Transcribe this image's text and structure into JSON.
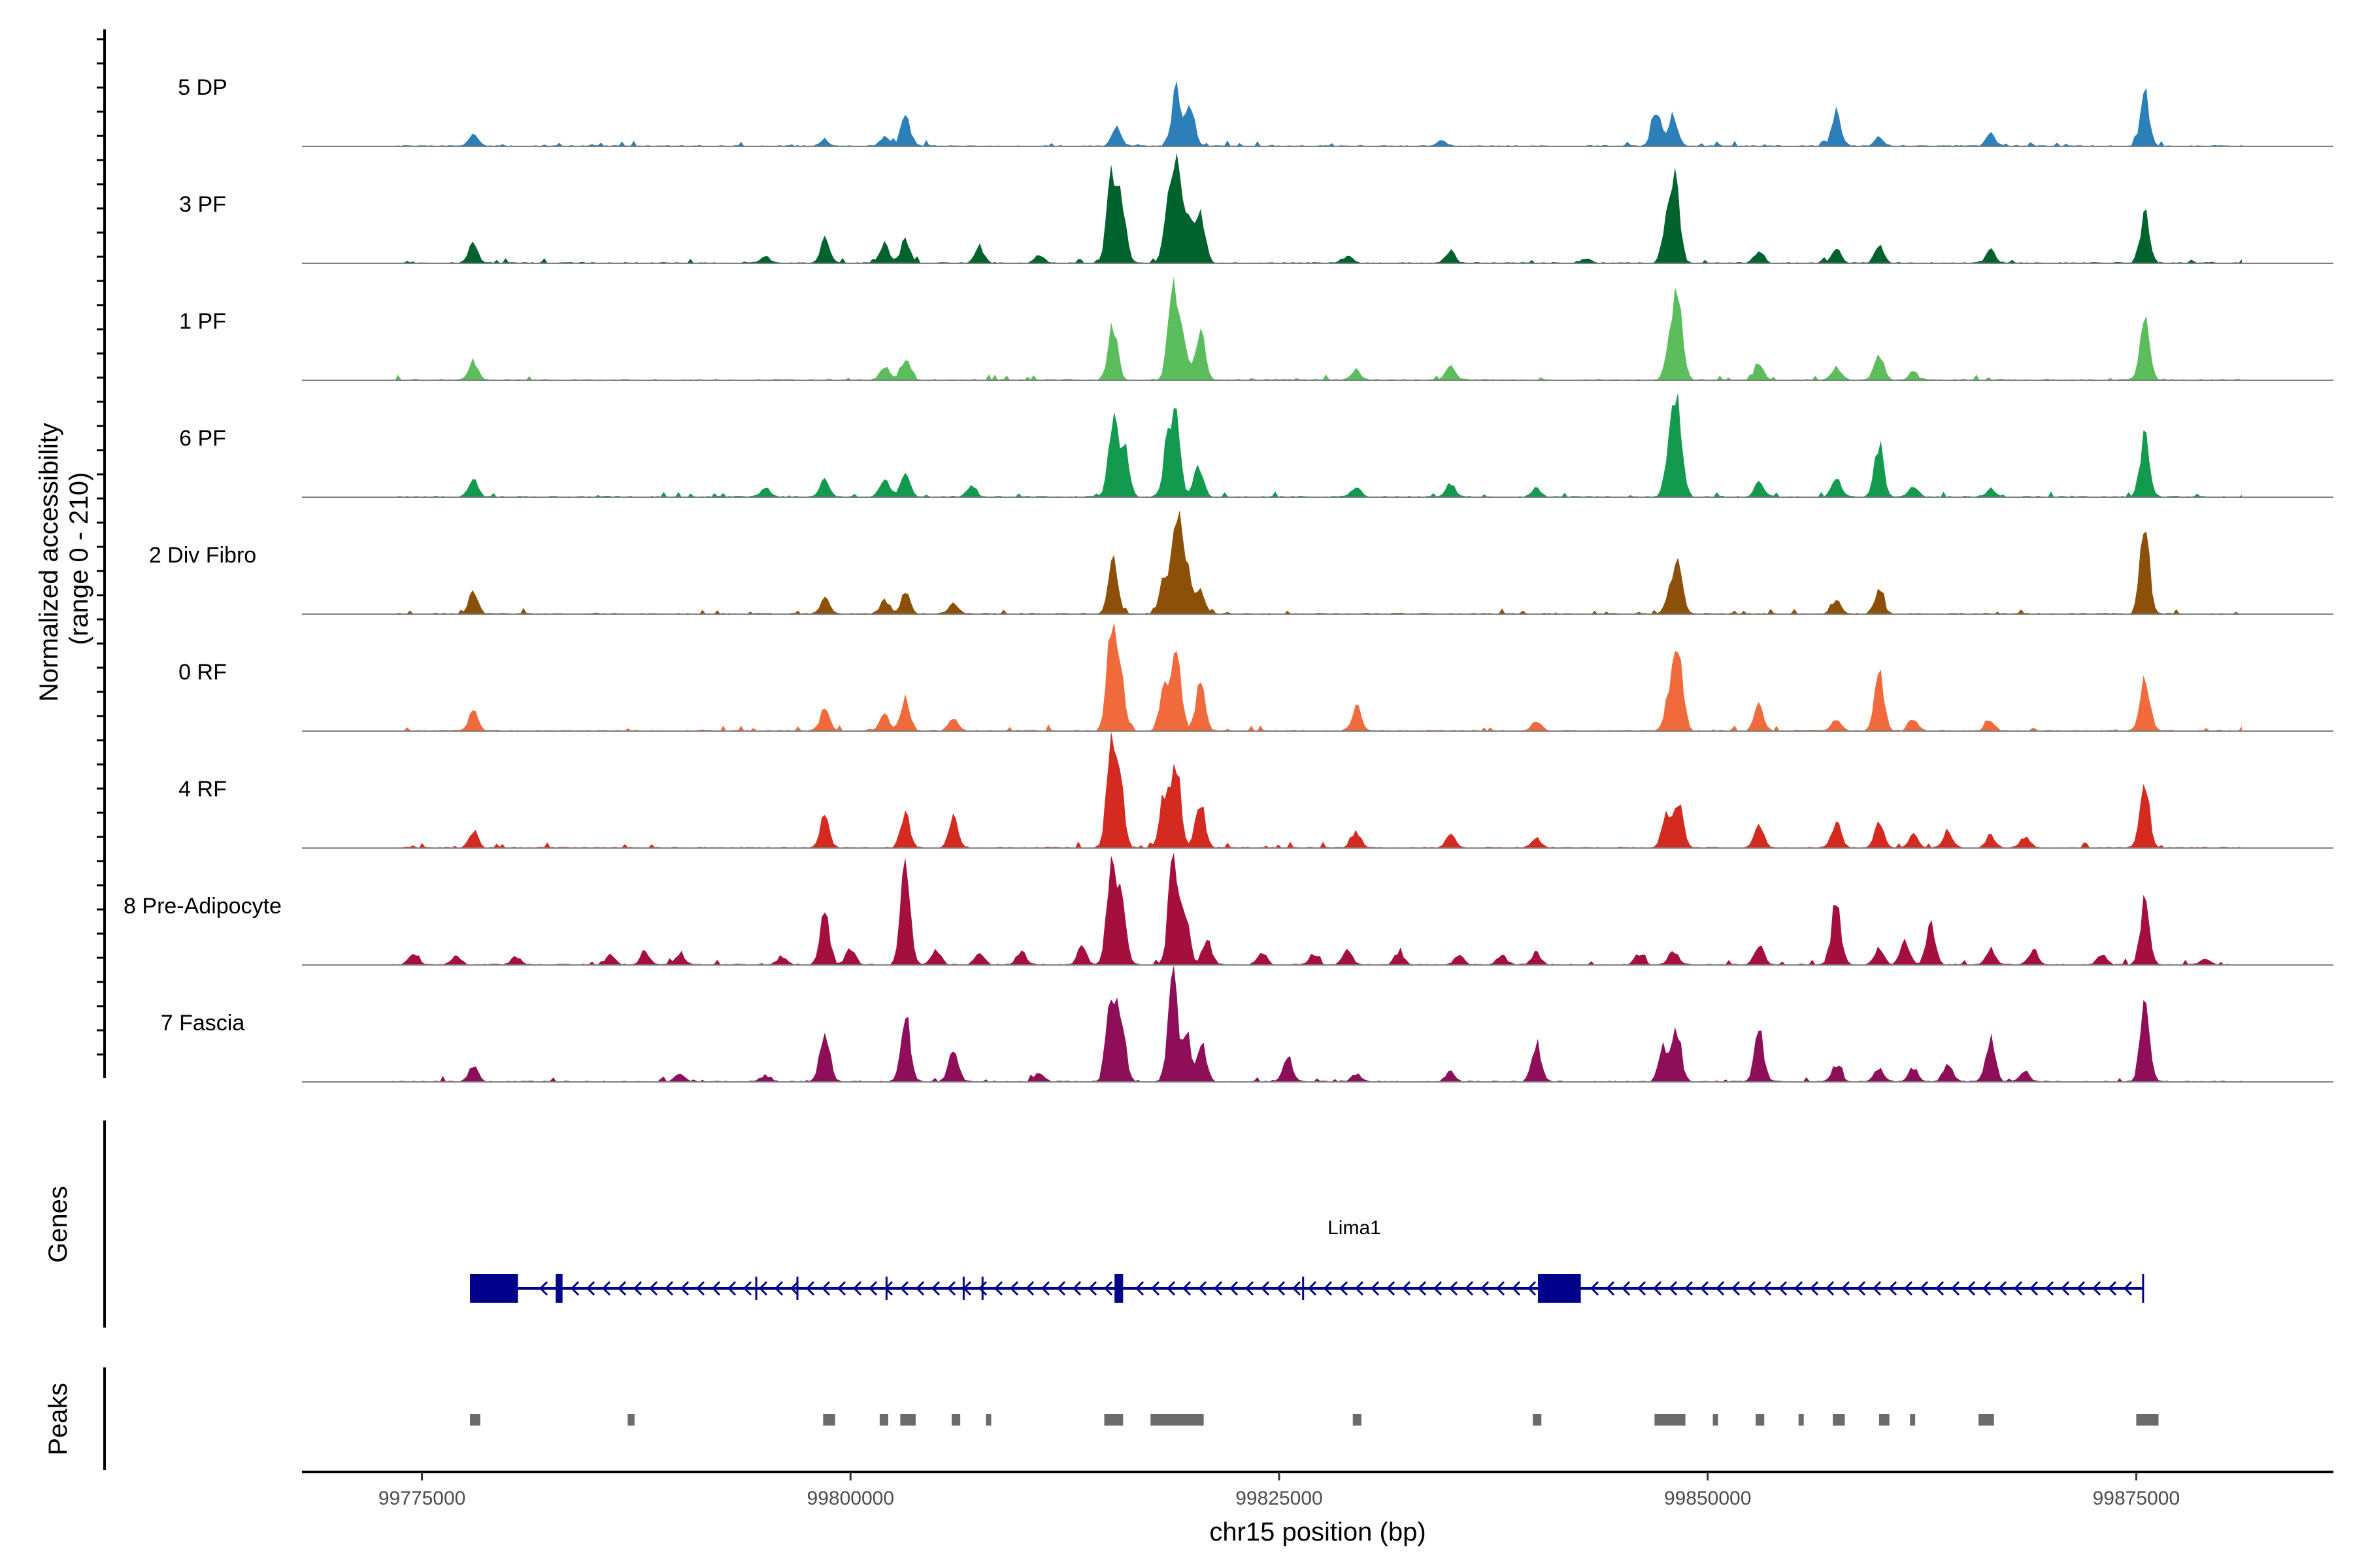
{
  "chart_data": {
    "type": "area",
    "title": "",
    "xlabel": "chr15 position (bp)",
    "ylabel": "Normalized accessibility\n(range 0 - 210)",
    "ylabel_lines": [
      "Normalized accessibility",
      "(range 0 - 210)"
    ],
    "ylim": [
      0,
      210
    ],
    "xlim": [
      99768000,
      99886500
    ],
    "x_ticks": [
      99775000,
      99800000,
      99825000,
      99850000,
      99875000
    ],
    "x_tick_labels": [
      "99775000",
      "99800000",
      "99825000",
      "99850000",
      "99875000"
    ],
    "track_panel_label": "Genes",
    "peaks_panel_label": "Peaks",
    "series": [
      {
        "name": "5 DP",
        "color": "#2C7FB8",
        "height": 0.65,
        "peaks": [
          [
            99778000,
            0.12
          ],
          [
            99798500,
            0.05
          ],
          [
            99802000,
            0.09
          ],
          [
            99803200,
            0.28
          ],
          [
            99815500,
            0.18
          ],
          [
            99819000,
            0.55
          ],
          [
            99819800,
            0.38
          ],
          [
            99834500,
            0.05
          ],
          [
            99847000,
            0.36
          ],
          [
            99848000,
            0.3
          ],
          [
            99857500,
            0.35
          ],
          [
            99860000,
            0.08
          ],
          [
            99866500,
            0.12
          ],
          [
            99875500,
            0.5
          ]
        ]
      },
      {
        "name": "3 PF",
        "color": "#00622D",
        "height": 0.65,
        "peaks": [
          [
            99778000,
            0.2
          ],
          [
            99795000,
            0.05
          ],
          [
            99798500,
            0.22
          ],
          [
            99802000,
            0.18
          ],
          [
            99803200,
            0.22
          ],
          [
            99807500,
            0.15
          ],
          [
            99811000,
            0.07
          ],
          [
            99815200,
            0.85
          ],
          [
            99815800,
            0.6
          ],
          [
            99818500,
            0.45
          ],
          [
            99819000,
            0.97
          ],
          [
            99819700,
            0.4
          ],
          [
            99820400,
            0.52
          ],
          [
            99829000,
            0.06
          ],
          [
            99835000,
            0.12
          ],
          [
            99843000,
            0.05
          ],
          [
            99847600,
            0.35
          ],
          [
            99848100,
            0.8
          ],
          [
            99853000,
            0.12
          ],
          [
            99857500,
            0.15
          ],
          [
            99860000,
            0.16
          ],
          [
            99866500,
            0.12
          ],
          [
            99875500,
            0.47
          ]
        ]
      },
      {
        "name": "1 PF",
        "color": "#5CBD5C",
        "height": 0.65,
        "peaks": [
          [
            99778000,
            0.18
          ],
          [
            99802000,
            0.12
          ],
          [
            99803200,
            0.2
          ],
          [
            99815300,
            0.55
          ],
          [
            99818800,
            0.98
          ],
          [
            99819400,
            0.35
          ],
          [
            99820400,
            0.5
          ],
          [
            99829500,
            0.1
          ],
          [
            99835000,
            0.15
          ],
          [
            99847800,
            0.4
          ],
          [
            99848300,
            0.72
          ],
          [
            99853000,
            0.15
          ],
          [
            99857500,
            0.12
          ],
          [
            99860000,
            0.25
          ],
          [
            99862000,
            0.08
          ],
          [
            99875500,
            0.68
          ]
        ]
      },
      {
        "name": "6 PF",
        "color": "#139A4F",
        "height": 0.65,
        "peaks": [
          [
            99778000,
            0.18
          ],
          [
            99795000,
            0.09
          ],
          [
            99798500,
            0.16
          ],
          [
            99802000,
            0.18
          ],
          [
            99803200,
            0.22
          ],
          [
            99807000,
            0.1
          ],
          [
            99815300,
            0.8
          ],
          [
            99816000,
            0.45
          ],
          [
            99818500,
            0.5
          ],
          [
            99819000,
            0.68
          ],
          [
            99820300,
            0.3
          ],
          [
            99829500,
            0.1
          ],
          [
            99835000,
            0.14
          ],
          [
            99840000,
            0.08
          ],
          [
            99847800,
            0.5
          ],
          [
            99848300,
            0.8
          ],
          [
            99853000,
            0.16
          ],
          [
            99857500,
            0.18
          ],
          [
            99860000,
            0.5
          ],
          [
            99862000,
            0.1
          ],
          [
            99866500,
            0.08
          ],
          [
            99875500,
            0.6
          ]
        ]
      },
      {
        "name": "2 Div Fibro",
        "color": "#8C5009",
        "height": 0.65,
        "peaks": [
          [
            99778000,
            0.22
          ],
          [
            99798500,
            0.15
          ],
          [
            99802000,
            0.14
          ],
          [
            99803200,
            0.2
          ],
          [
            99806000,
            0.12
          ],
          [
            99815300,
            0.55
          ],
          [
            99818300,
            0.35
          ],
          [
            99819000,
            0.97
          ],
          [
            99819600,
            0.5
          ],
          [
            99820400,
            0.25
          ],
          [
            99847800,
            0.22
          ],
          [
            99848300,
            0.45
          ],
          [
            99857500,
            0.14
          ],
          [
            99860000,
            0.22
          ],
          [
            99875500,
            0.87
          ]
        ]
      },
      {
        "name": "0 RF",
        "color": "#F06A3B",
        "height": 0.65,
        "peaks": [
          [
            99778000,
            0.18
          ],
          [
            99798500,
            0.22
          ],
          [
            99802000,
            0.15
          ],
          [
            99803200,
            0.32
          ],
          [
            99806000,
            0.12
          ],
          [
            99815200,
            0.88
          ],
          [
            99815700,
            0.62
          ],
          [
            99818300,
            0.45
          ],
          [
            99819000,
            0.7
          ],
          [
            99820400,
            0.47
          ],
          [
            99829500,
            0.22
          ],
          [
            99840000,
            0.1
          ],
          [
            99847800,
            0.35
          ],
          [
            99848300,
            0.82
          ],
          [
            99853000,
            0.25
          ],
          [
            99857500,
            0.12
          ],
          [
            99860000,
            0.55
          ],
          [
            99862000,
            0.1
          ],
          [
            99866500,
            0.1
          ],
          [
            99875500,
            0.57
          ]
        ]
      },
      {
        "name": "4 RF",
        "color": "#D42A20",
        "height": 0.65,
        "peaks": [
          [
            99778000,
            0.16
          ],
          [
            99798500,
            0.32
          ],
          [
            99803200,
            0.32
          ],
          [
            99806000,
            0.28
          ],
          [
            99815200,
            0.95
          ],
          [
            99815700,
            0.6
          ],
          [
            99818300,
            0.5
          ],
          [
            99819000,
            0.85
          ],
          [
            99820400,
            0.47
          ],
          [
            99829500,
            0.16
          ],
          [
            99835000,
            0.12
          ],
          [
            99840000,
            0.1
          ],
          [
            99847600,
            0.3
          ],
          [
            99848300,
            0.42
          ],
          [
            99853000,
            0.22
          ],
          [
            99857500,
            0.25
          ],
          [
            99860000,
            0.25
          ],
          [
            99862000,
            0.12
          ],
          [
            99864000,
            0.15
          ],
          [
            99866500,
            0.13
          ],
          [
            99868500,
            0.1
          ],
          [
            99875500,
            0.65
          ]
        ]
      },
      {
        "name": "8 Pre-Adipocyte",
        "color": "#A50F3E",
        "height": 0.65,
        "peaks": [
          [
            99774500,
            0.1
          ],
          [
            99777000,
            0.08
          ],
          [
            99780500,
            0.08
          ],
          [
            99786000,
            0.1
          ],
          [
            99788000,
            0.12
          ],
          [
            99790000,
            0.1
          ],
          [
            99796000,
            0.08
          ],
          [
            99798500,
            0.55
          ],
          [
            99800000,
            0.15
          ],
          [
            99803200,
            0.95
          ],
          [
            99805000,
            0.14
          ],
          [
            99807500,
            0.12
          ],
          [
            99810000,
            0.12
          ],
          [
            99813500,
            0.18
          ],
          [
            99815200,
            0.85
          ],
          [
            99815800,
            0.6
          ],
          [
            99818800,
            0.98
          ],
          [
            99819500,
            0.55
          ],
          [
            99820800,
            0.25
          ],
          [
            99824000,
            0.12
          ],
          [
            99827000,
            0.1
          ],
          [
            99829000,
            0.14
          ],
          [
            99832000,
            0.12
          ],
          [
            99835500,
            0.1
          ],
          [
            99838000,
            0.1
          ],
          [
            99840000,
            0.12
          ],
          [
            99846000,
            0.1
          ],
          [
            99848000,
            0.14
          ],
          [
            99853000,
            0.2
          ],
          [
            99857500,
            0.62
          ],
          [
            99860000,
            0.15
          ],
          [
            99861500,
            0.22
          ],
          [
            99863000,
            0.4
          ],
          [
            99866500,
            0.16
          ],
          [
            99869000,
            0.14
          ],
          [
            99873000,
            0.1
          ],
          [
            99875500,
            0.62
          ],
          [
            99879000,
            0.06
          ]
        ]
      },
      {
        "name": "7 Fascia",
        "color": "#8E0E59",
        "height": 0.65,
        "peaks": [
          [
            99778000,
            0.15
          ],
          [
            99790000,
            0.08
          ],
          [
            99795000,
            0.06
          ],
          [
            99798500,
            0.52
          ],
          [
            99803200,
            0.7
          ],
          [
            99806000,
            0.35
          ],
          [
            99811000,
            0.08
          ],
          [
            99815200,
            0.82
          ],
          [
            99815800,
            0.55
          ],
          [
            99818800,
            1.0
          ],
          [
            99819600,
            0.45
          ],
          [
            99820500,
            0.35
          ],
          [
            99825500,
            0.25
          ],
          [
            99829500,
            0.08
          ],
          [
            99835000,
            0.1
          ],
          [
            99840000,
            0.38
          ],
          [
            99847400,
            0.35
          ],
          [
            99848200,
            0.5
          ],
          [
            99853000,
            0.48
          ],
          [
            99857500,
            0.16
          ],
          [
            99860000,
            0.12
          ],
          [
            99862000,
            0.14
          ],
          [
            99864000,
            0.18
          ],
          [
            99866500,
            0.4
          ],
          [
            99868500,
            0.1
          ],
          [
            99875500,
            0.75
          ]
        ]
      }
    ],
    "genes": [
      {
        "name": "Lima1",
        "strand": "-",
        "start": 99777800,
        "end": 99875400,
        "exons": [
          [
            99777800,
            99780600
          ],
          [
            99782800,
            99783200
          ],
          [
            99815400,
            99815900
          ],
          [
            99840100,
            99842600
          ]
        ],
        "minor_exons": [
          99794500,
          99796900,
          99802100,
          99806600,
          99807700,
          99826400
        ]
      }
    ],
    "peak_regions": [
      [
        99777800,
        99778400
      ],
      [
        99787000,
        99787400
      ],
      [
        99798400,
        99799100
      ],
      [
        99801700,
        99802200
      ],
      [
        99802900,
        99803800
      ],
      [
        99805900,
        99806400
      ],
      [
        99807900,
        99808100
      ],
      [
        99814800,
        99815900
      ],
      [
        99817500,
        99820600
      ],
      [
        99829300,
        99829800
      ],
      [
        99839800,
        99840300
      ],
      [
        99846900,
        99848700
      ],
      [
        99850300,
        99850500
      ],
      [
        99852800,
        99853300
      ],
      [
        99855300,
        99855500
      ],
      [
        99857300,
        99858000
      ],
      [
        99860000,
        99860600
      ],
      [
        99861800,
        99862100
      ],
      [
        99865800,
        99866700
      ],
      [
        99875000,
        99876300
      ]
    ]
  },
  "colors": {
    "gene": "#00008B",
    "peak_region": "#6B6B6B",
    "baseline": "#808080",
    "axis": "#000000",
    "tick_text": "#4D4D4D"
  }
}
